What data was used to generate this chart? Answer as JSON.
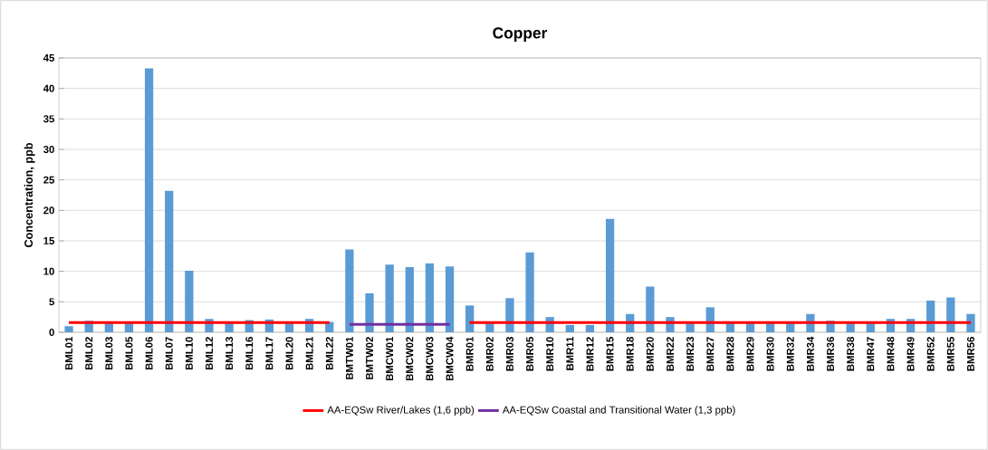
{
  "chart_data": {
    "type": "bar",
    "title": "Copper",
    "ylabel": "Concentration, ppb",
    "categories": [
      "BML01",
      "BML02",
      "BML03",
      "BML05",
      "BML06",
      "BML07",
      "BML10",
      "BML12",
      "BML13",
      "BML16",
      "BML17",
      "BML20",
      "BML21",
      "BML22",
      "BMTW01",
      "BMTW02",
      "BMCW01",
      "BMCW02",
      "BMCW03",
      "BMCW04",
      "BMR01",
      "BMR02",
      "BMR03",
      "BMR05",
      "BMR10",
      "BMR11",
      "BMR12",
      "BMR15",
      "BMR18",
      "BMR20",
      "BMR22",
      "BMR23",
      "BMR27",
      "BMR28",
      "BMR29",
      "BMR30",
      "BMR32",
      "BMR34",
      "BMR36",
      "BMR38",
      "BMR47",
      "BMR48",
      "BMR49",
      "BMR52",
      "BMR55",
      "BMR56"
    ],
    "series": [
      {
        "type": "bar",
        "color": "#5b9bd5",
        "values": [
          1.0,
          1.9,
          1.7,
          1.7,
          43.3,
          23.2,
          10.1,
          2.2,
          1.7,
          2.0,
          2.1,
          1.7,
          2.2,
          1.7,
          13.6,
          6.4,
          11.1,
          10.7,
          11.3,
          10.8,
          4.4,
          1.5,
          5.6,
          13.1,
          2.5,
          1.2,
          1.2,
          18.6,
          3.0,
          7.5,
          2.5,
          1.7,
          4.1,
          1.7,
          1.7,
          1.7,
          1.7,
          3.0,
          1.9,
          1.7,
          1.7,
          2.2,
          2.2,
          5.2,
          5.7,
          3.0
        ]
      },
      {
        "type": "line",
        "name": "AA-EQSw River/Lakes (1,6 ppb)",
        "color": "#ff0000",
        "values": [
          1.6,
          1.6,
          1.6,
          1.6,
          1.6,
          1.6,
          1.6,
          1.6,
          1.6,
          1.6,
          1.6,
          1.6,
          1.6,
          1.6,
          null,
          null,
          null,
          null,
          null,
          null,
          1.6,
          1.6,
          1.6,
          1.6,
          1.6,
          1.6,
          1.6,
          1.6,
          1.6,
          1.6,
          1.6,
          1.6,
          1.6,
          1.6,
          1.6,
          1.6,
          1.6,
          1.6,
          1.6,
          1.6,
          1.6,
          1.6,
          1.6,
          1.6,
          1.6,
          1.6
        ]
      },
      {
        "type": "line",
        "name": "AA-EQSw Coastal and Transitional Water (1,3 ppb)",
        "color": "#7030a0",
        "values": [
          null,
          null,
          null,
          null,
          null,
          null,
          null,
          null,
          null,
          null,
          null,
          null,
          null,
          null,
          1.3,
          1.3,
          1.3,
          1.3,
          1.3,
          1.3,
          null,
          null,
          null,
          null,
          null,
          null,
          null,
          null,
          null,
          null,
          null,
          null,
          null,
          null,
          null,
          null,
          null,
          null,
          null,
          null,
          null,
          null,
          null,
          null,
          null,
          null
        ]
      }
    ],
    "ylim": [
      0,
      45
    ],
    "yticks": [
      0,
      5,
      10,
      15,
      20,
      25,
      30,
      35,
      40,
      45
    ],
    "grid": "y",
    "legend": "bottom"
  }
}
